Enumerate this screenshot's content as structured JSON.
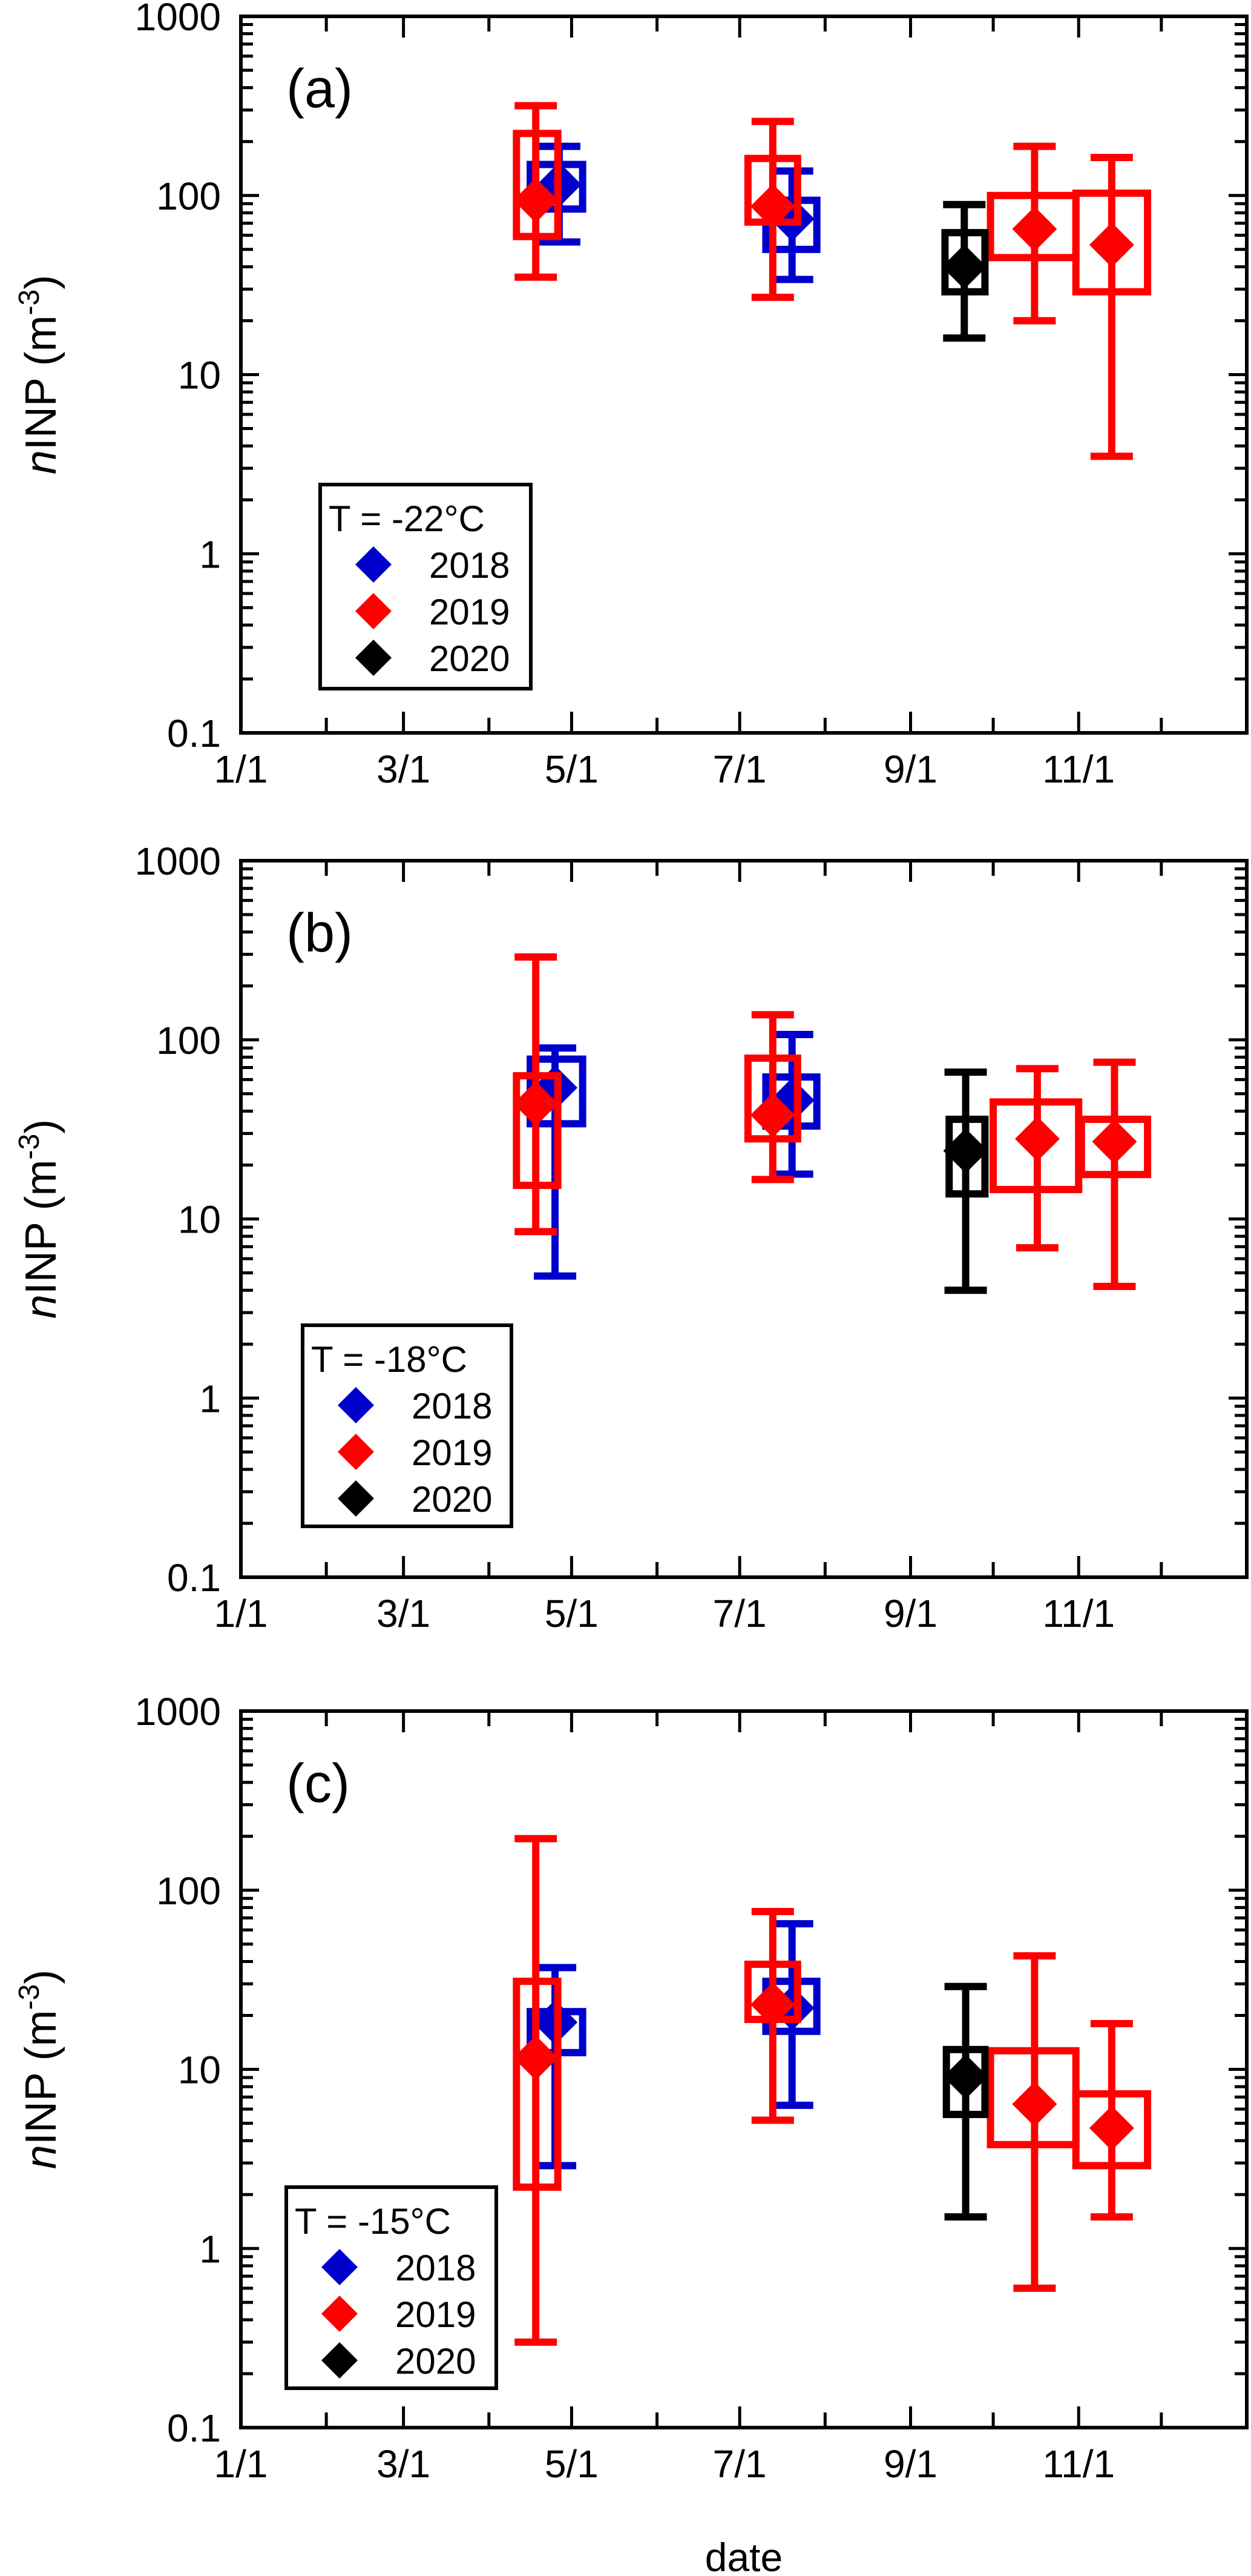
{
  "chart_data": {
    "type": "scatter",
    "xlabel": "date",
    "ylabel": {
      "italic": "n",
      "main": "INP (m",
      "superscript": "-3",
      "close": ")"
    },
    "x_unit": "day of year",
    "xlim": [
      0,
      365
    ],
    "ylim": [
      0.1,
      1000
    ],
    "yscale": "log",
    "x_ticks": [
      {
        "day": 0,
        "label": "1/1"
      },
      {
        "day": 59,
        "label": "3/1"
      },
      {
        "day": 120,
        "label": "5/1"
      },
      {
        "day": 181,
        "label": "7/1"
      },
      {
        "day": 243,
        "label": "9/1"
      },
      {
        "day": 304,
        "label": "11/1"
      }
    ],
    "x_minor_ticks": [
      31,
      90,
      151,
      212,
      273,
      334
    ],
    "y_ticks": [
      {
        "value": 1000,
        "label": "1000"
      },
      {
        "value": 100,
        "label": "100"
      },
      {
        "value": 10,
        "label": "10"
      },
      {
        "value": 1,
        "label": "1"
      },
      {
        "value": 0.1,
        "label": "0.1"
      }
    ],
    "grid": false,
    "legend_placement": "lower-left",
    "series_colors": {
      "2018": "#0000CC",
      "2019": "#FF0000",
      "2020": "#000000"
    },
    "panels": [
      {
        "label": "(a)",
        "legend_title": "T = -22°C",
        "series": [
          {
            "name": "2018",
            "points": [
              {
                "x": 115.5,
                "x0": 105,
                "x1": 124,
                "y": 115,
                "box": [
                  84,
                  149
                ],
                "err": [
                  55,
                  188
                ]
              },
              {
                "x": 200,
                "x0": 190.5,
                "x1": 209,
                "y": 74,
                "box": [
                  50,
                  94
                ],
                "err": [
                  34,
                  137
                ]
              }
            ]
          },
          {
            "name": "2019",
            "points": [
              {
                "x": 107,
                "x0": 100,
                "x1": 115,
                "y": 94,
                "box": [
                  59,
                  222
                ],
                "err": [
                  35,
                  317
                ]
              },
              {
                "x": 193,
                "x0": 184,
                "x1": 202,
                "y": 87,
                "box": [
                  71,
                  161
                ],
                "err": [
                  27,
                  259
                ]
              },
              {
                "x": 288,
                "x0": 272,
                "x1": 303,
                "y": 65,
                "box": [
                  45,
                  100
                ],
                "err": [
                  20,
                  188
                ]
              },
              {
                "x": 316,
                "x0": 303,
                "x1": 329,
                "y": 53,
                "box": [
                  29,
                  103
                ],
                "err": [
                  3.5,
                  163
                ]
              }
            ]
          },
          {
            "name": "2020",
            "points": [
              {
                "x": 262.5,
                "x0": 255.5,
                "x1": 270,
                "y": 40,
                "box": [
                  29,
                  62
                ],
                "err": [
                  16,
                  89
                ]
              }
            ]
          }
        ]
      },
      {
        "label": "(b)",
        "legend_title": "T = -18°C",
        "series": [
          {
            "name": "2018",
            "points": [
              {
                "x": 114,
                "x0": 105,
                "x1": 124,
                "y": 54,
                "box": [
                  34,
                  78
                ],
                "err": [
                  4.8,
                  90
                ]
              },
              {
                "x": 200,
                "x0": 190.5,
                "x1": 209,
                "y": 46,
                "box": [
                  33,
                  62
                ],
                "err": [
                  17.8,
                  107
                ]
              }
            ]
          },
          {
            "name": "2019",
            "points": [
              {
                "x": 107,
                "x0": 100,
                "x1": 115,
                "y": 44,
                "box": [
                  15.4,
                  63
                ],
                "err": [
                  8.5,
                  290
                ]
              },
              {
                "x": 193,
                "x0": 184,
                "x1": 202,
                "y": 38,
                "box": [
                  28,
                  79
                ],
                "err": [
                  16.6,
                  138
                ]
              },
              {
                "x": 289,
                "x0": 273,
                "x1": 304,
                "y": 28,
                "box": [
                  14.6,
                  45
                ],
                "err": [
                  6.9,
                  69
                ]
              },
              {
                "x": 317,
                "x0": 305,
                "x1": 329,
                "y": 27,
                "box": [
                  17.7,
                  36
                ],
                "err": [
                  4.2,
                  75
                ]
              }
            ]
          },
          {
            "name": "2020",
            "points": [
              {
                "x": 263,
                "x0": 257,
                "x1": 270,
                "y": 24,
                "box": [
                  13.8,
                  36
                ],
                "err": [
                  4.0,
                  66
                ]
              }
            ]
          }
        ]
      },
      {
        "label": "(c)",
        "legend_title": "T = -15°C",
        "series": [
          {
            "name": "2018",
            "points": [
              {
                "x": 114,
                "x0": 105,
                "x1": 124,
                "y": 18.3,
                "box": [
                  12.4,
                  21
                ],
                "err": [
                  2.9,
                  37
                ]
              },
              {
                "x": 200,
                "x0": 190.5,
                "x1": 209,
                "y": 22,
                "box": [
                  16.3,
                  31
                ],
                "err": [
                  6.3,
                  65
                ]
              }
            ]
          },
          {
            "name": "2019",
            "points": [
              {
                "x": 107,
                "x0": 100,
                "x1": 115,
                "y": 11.6,
                "box": [
                  2.2,
                  31
                ],
                "err": [
                  0.3,
                  194
                ]
              },
              {
                "x": 193,
                "x0": 184,
                "x1": 202,
                "y": 23,
                "box": [
                  19,
                  38.6
                ],
                "err": [
                  5.2,
                  76
                ]
              },
              {
                "x": 288,
                "x0": 272,
                "x1": 303,
                "y": 6.4,
                "box": [
                  3.8,
                  12.7
                ],
                "err": [
                  0.6,
                  43
                ]
              },
              {
                "x": 316,
                "x0": 303,
                "x1": 329,
                "y": 4.7,
                "box": [
                  2.9,
                  7.3
                ],
                "err": [
                  1.5,
                  18
                ]
              }
            ]
          },
          {
            "name": "2020",
            "points": [
              {
                "x": 263,
                "x0": 256,
                "x1": 270,
                "y": 9.1,
                "box": [
                  5.6,
                  12.9
                ],
                "err": [
                  1.5,
                  29
                ]
              }
            ]
          }
        ]
      }
    ]
  }
}
